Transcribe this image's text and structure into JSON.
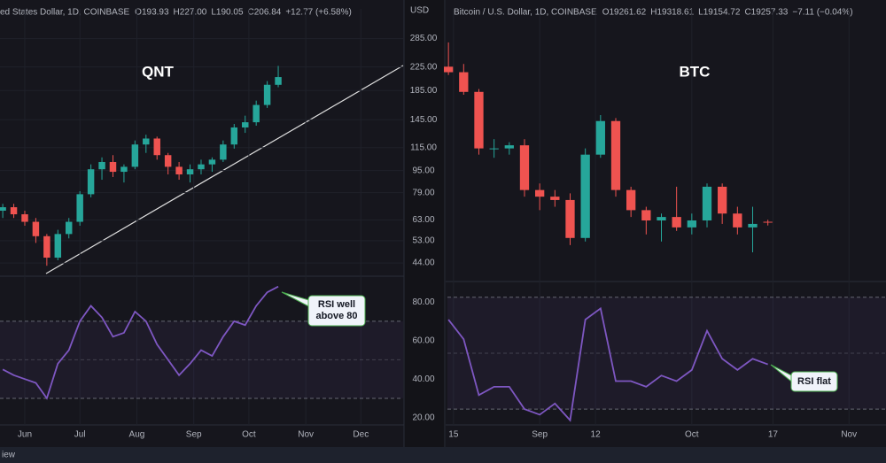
{
  "header_left": {
    "title": "ed States Dollar, 1D, COINBASE",
    "ohlc": [
      "O193.93",
      "H227.00",
      "L190.05",
      "C206.84"
    ],
    "change": "+12.77 (+6.58%)"
  },
  "header_right": {
    "title": "Bitcoin / U.S. Dollar, 1D, COINBASE",
    "ohlc": [
      "O19261.62",
      "H19318.61",
      "L19154.72",
      "C19257.33"
    ],
    "change": "−7.11 (−0.04%)"
  },
  "price_axis_unit": "USD",
  "footer": "iew",
  "chart_data": [
    {
      "type": "candlestick",
      "title": "QNT",
      "log_scale": true,
      "grid": true,
      "up_color": "#26a69a",
      "down_color": "#ef5350",
      "annotation": "RSI well above 80",
      "x": [
        140,
        146,
        152,
        158,
        164,
        170,
        176,
        182,
        188,
        194,
        200,
        206,
        212,
        218,
        224,
        230,
        236,
        242,
        248,
        254,
        260,
        266,
        272,
        278,
        284,
        290
      ],
      "open": [
        68,
        70,
        66,
        62,
        55,
        46,
        56,
        62,
        78,
        96,
        102,
        94,
        98,
        118,
        124,
        108,
        98,
        92,
        96,
        100,
        104,
        118,
        136,
        142,
        164,
        193.93
      ],
      "high": [
        72,
        72,
        68,
        64,
        56,
        58,
        64,
        80,
        100,
        106,
        108,
        100,
        122,
        128,
        126,
        110,
        102,
        100,
        104,
        106,
        122,
        140,
        150,
        170,
        200,
        227
      ],
      "low": [
        64,
        64,
        60,
        52,
        43,
        45,
        54,
        60,
        76,
        88,
        90,
        86,
        96,
        110,
        104,
        92,
        88,
        86,
        92,
        94,
        102,
        114,
        130,
        138,
        160,
        190.05
      ],
      "close": [
        70,
        66,
        62,
        55,
        46,
        56,
        62,
        78,
        96,
        102,
        94,
        98,
        118,
        124,
        108,
        98,
        92,
        96,
        100,
        104,
        118,
        136,
        142,
        164,
        194,
        206.84
      ],
      "xlim": [
        138.5,
        358
      ],
      "xticks": [
        {
          "value": 152,
          "label": "Jun"
        },
        {
          "value": 182,
          "label": "Jul"
        },
        {
          "value": 213,
          "label": "Aug"
        },
        {
          "value": 244,
          "label": "Sep"
        },
        {
          "value": 274,
          "label": "Oct"
        },
        {
          "value": 305,
          "label": "Nov"
        },
        {
          "value": 335,
          "label": "Dec"
        }
      ],
      "ylim": [
        40,
        365
      ],
      "yticks": [
        {
          "value": 285,
          "label": "285.00"
        },
        {
          "value": 225,
          "label": "225.00"
        },
        {
          "value": 185,
          "label": "185.00"
        },
        {
          "value": 145,
          "label": "145.00"
        },
        {
          "value": 115,
          "label": "115.00"
        },
        {
          "value": 95,
          "label": "95.00"
        },
        {
          "value": 79,
          "label": "79.00"
        },
        {
          "value": 63,
          "label": "63.00"
        },
        {
          "value": 53,
          "label": "53.00"
        },
        {
          "value": 44,
          "label": "44.00"
        }
      ],
      "rsi": {
        "type": "line",
        "color": "#7e57c2",
        "values": [
          45,
          42,
          40,
          38,
          30,
          48,
          55,
          70,
          78,
          72,
          62,
          64,
          75,
          70,
          58,
          50,
          42,
          48,
          55,
          52,
          62,
          70,
          68,
          78,
          85,
          88
        ],
        "ylim": [
          7,
          92
        ],
        "yticks": [
          {
            "value": 80,
            "label": "80.00"
          },
          {
            "value": 60,
            "label": "60.00"
          },
          {
            "value": 40,
            "label": "40.00"
          },
          {
            "value": 20,
            "label": "20.00"
          }
        ],
        "bands": [
          30,
          50,
          70
        ]
      }
    },
    {
      "type": "candlestick",
      "title": "BTC",
      "log_scale": true,
      "grid": true,
      "up_color": "#26a69a",
      "down_color": "#ef5350",
      "annotation": "RSI flat",
      "x": [
        226,
        229,
        232,
        235,
        238,
        241,
        244,
        247,
        250,
        253,
        256,
        259,
        262,
        265,
        268,
        271,
        274,
        277,
        280,
        283,
        286,
        289
      ],
      "open": [
        24300,
        24100,
        23400,
        21500,
        21500,
        21600,
        20200,
        20000,
        19900,
        18800,
        21300,
        22400,
        20200,
        19600,
        19300,
        19400,
        19100,
        19300,
        20300,
        19500,
        19100,
        19261.62
      ],
      "high": [
        25200,
        24400,
        23500,
        21800,
        21700,
        21800,
        20400,
        20200,
        20100,
        21500,
        22600,
        22500,
        20300,
        19700,
        19500,
        20300,
        19500,
        20400,
        20400,
        19700,
        19700,
        19318.61
      ],
      "low": [
        24000,
        23300,
        21300,
        21200,
        21300,
        20000,
        19600,
        19700,
        18600,
        18700,
        21200,
        20000,
        19400,
        18900,
        18700,
        19000,
        18900,
        19100,
        19200,
        18900,
        18400,
        19154.72
      ],
      "close": [
        24100,
        23400,
        21500,
        21500,
        21600,
        20200,
        20000,
        19900,
        18800,
        21300,
        22400,
        20200,
        19600,
        19300,
        19400,
        19100,
        19300,
        20300,
        19500,
        19100,
        19200,
        19257.33
      ],
      "xlim": [
        225.8,
        312.3
      ],
      "xticks": [
        {
          "value": 227,
          "label": "15"
        },
        {
          "value": 244,
          "label": "Sep"
        },
        {
          "value": 255,
          "label": "12"
        },
        {
          "value": 274,
          "label": "Oct"
        },
        {
          "value": 290,
          "label": "17"
        },
        {
          "value": 305,
          "label": "Nov"
        }
      ],
      "ylim": [
        17800,
        26500
      ],
      "rsi": {
        "type": "line",
        "color": "#7e57c2",
        "values": [
          62,
          55,
          35,
          38,
          38,
          30,
          28,
          32,
          26,
          62,
          66,
          40,
          40,
          38,
          42,
          40,
          44,
          58,
          48,
          44,
          48,
          46
        ],
        "ylim": [
          18,
          75
        ],
        "bands": [
          30,
          50,
          70
        ]
      }
    }
  ]
}
